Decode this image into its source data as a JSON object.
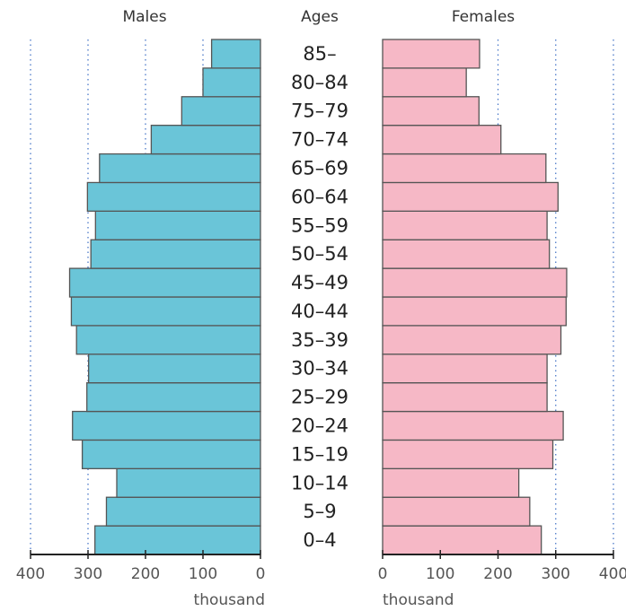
{
  "chart_data": {
    "type": "bar",
    "subtype": "population-pyramid",
    "headers": {
      "left": "Males",
      "center": "Ages",
      "right": "Females"
    },
    "categories": [
      "0–4",
      "5–9",
      "10–14",
      "15–19",
      "20–24",
      "25–29",
      "30–34",
      "35–39",
      "40–44",
      "45–49",
      "50–54",
      "55–59",
      "60–64",
      "65–69",
      "70–74",
      "75–79",
      "80–84",
      "85–"
    ],
    "series": [
      {
        "name": "Males",
        "color": "#6ac5d8",
        "values": [
          288,
          268,
          250,
          310,
          327,
          302,
          299,
          320,
          329,
          332,
          295,
          287,
          301,
          280,
          190,
          137,
          100,
          85
        ]
      },
      {
        "name": "Females",
        "color": "#f6b8c6",
        "values": [
          275,
          255,
          236,
          295,
          313,
          285,
          285,
          309,
          318,
          319,
          289,
          285,
          304,
          283,
          205,
          167,
          145,
          168
        ]
      }
    ],
    "xlim": [
      0,
      400
    ],
    "x_ticks": [
      0,
      100,
      200,
      300,
      400
    ],
    "xlabel_left": "thousand",
    "xlabel_right": "thousand",
    "grid": "dotted vertical lines at 100, 200, 300, 400",
    "bar_edge_color": "#555555",
    "grid_color": "#4a78c8",
    "axis_color": "#222222"
  }
}
